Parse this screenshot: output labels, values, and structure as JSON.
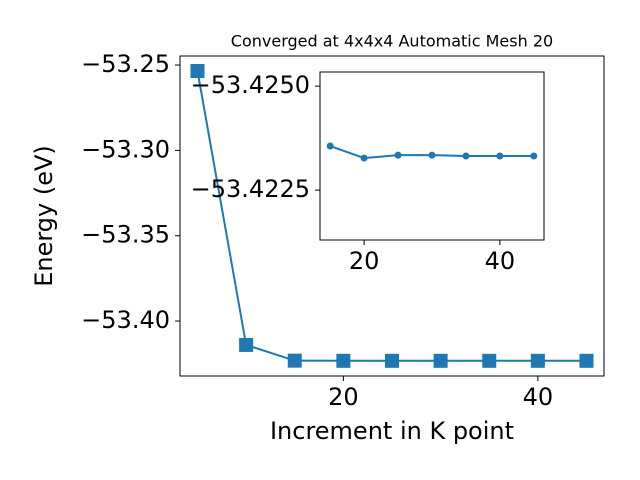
{
  "chart_data": [
    {
      "type": "line",
      "title": "Converged at 4x4x4 Automatic Mesh 20",
      "x_label": "Increment in K point",
      "y_label": "Energy (eV)",
      "x": [
        5,
        10,
        15,
        20,
        25,
        30,
        35,
        40,
        45
      ],
      "series": [
        {
          "color": "#1f77b4",
          "marker": "square",
          "values": [
            -53.2535,
            -53.414,
            -53.4232,
            -53.4233,
            -53.4233,
            -53.4233,
            -53.4233,
            -53.4233,
            -53.4233
          ]
        }
      ],
      "xlim": [
        3.2,
        46.8
      ],
      "ylim": [
        -53.4322,
        -53.2447
      ],
      "xticks": [
        20,
        40
      ],
      "yticks": [
        {
          "value": -53.25,
          "label": "−53.25"
        },
        {
          "value": -53.3,
          "label": "−53.30"
        },
        {
          "value": -53.35,
          "label": "−53.35"
        },
        {
          "value": -53.4,
          "label": "−53.40"
        }
      ]
    },
    {
      "type": "line",
      "x": [
        15,
        20,
        25,
        30,
        35,
        40,
        45
      ],
      "series": [
        {
          "color": "#1f77b4",
          "marker": "circle",
          "values": [
            -53.42356,
            -53.42327,
            -53.42334,
            -53.42334,
            -53.42332,
            -53.42332,
            -53.42332
          ]
        }
      ],
      "xlim": [
        13.5,
        46.5
      ],
      "ylim": [
        -53.4213,
        -53.42534
      ],
      "xticks": [
        20,
        40
      ],
      "yticks": [
        {
          "value": -53.425,
          "label": "−53.4250"
        },
        {
          "value": -53.4225,
          "label": "−53.4225"
        }
      ]
    }
  ]
}
